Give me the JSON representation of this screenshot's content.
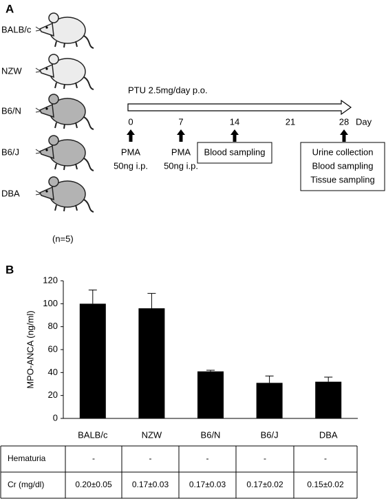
{
  "panel_a": {
    "label": "A",
    "strains": [
      "BALB/c",
      "NZW",
      "B6/N",
      "B6/J",
      "DBA"
    ],
    "n_note": "(n=5)",
    "treatment": "PTU 2.5mg/day p.o.",
    "days": [
      "0",
      "7",
      "14",
      "21",
      "28"
    ],
    "day_unit": "Day",
    "events": [
      {
        "lines": [
          "PMA",
          "50ng i.p."
        ]
      },
      {
        "lines": [
          "PMA",
          "50ng i.p."
        ]
      },
      {
        "lines": [
          "Blood sampling"
        ]
      },
      {
        "lines": [
          "Urine collection",
          "Blood sampling",
          "Tissue sampling"
        ]
      }
    ]
  },
  "chart_data": {
    "type": "bar",
    "panel_label": "B",
    "y_label": "MPO-ANCA (ng/ml)",
    "categories": [
      "BALB/c",
      "NZW",
      "B6/N",
      "B6/J",
      "DBA"
    ],
    "values": [
      100,
      96,
      41,
      31,
      32
    ],
    "errors": [
      12,
      13,
      1,
      6,
      4
    ],
    "color": "#000000",
    "ylim": [
      0,
      120
    ],
    "yticks": [
      0,
      20,
      40,
      60,
      80,
      100,
      120
    ]
  },
  "table": {
    "rows": [
      [
        "Hematuria",
        "-",
        "-",
        "-",
        "-",
        "-"
      ],
      [
        "Cr (mg/dl)",
        "0.20±0.05",
        "0.17±0.03",
        "0.17±0.03",
        "0.17±0.02",
        "0.15±0.02"
      ]
    ]
  }
}
